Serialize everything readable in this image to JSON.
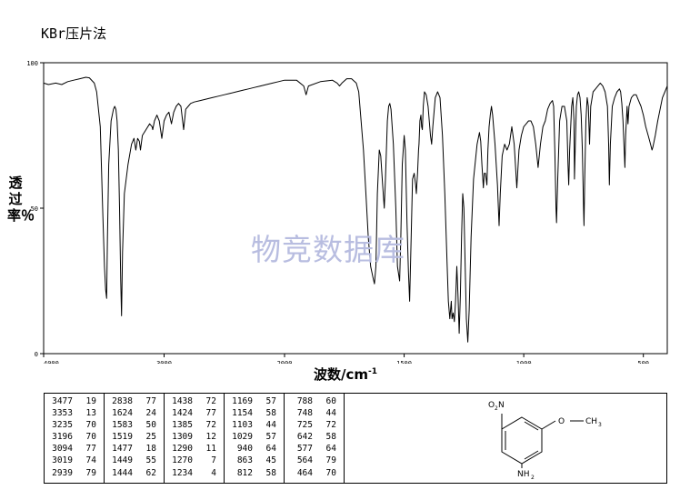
{
  "header": {
    "title": "KBr压片法"
  },
  "axes": {
    "ylabel": "透过率％",
    "xlabel_main": "波数/cm",
    "xlabel_sup": "-1"
  },
  "watermark": "物竞数据库",
  "chart_data": {
    "type": "line",
    "xlabel": "波数/cm-1",
    "ylabel": "透过率％",
    "xlim": [
      4000,
      400
    ],
    "ylim": [
      0,
      100
    ],
    "x_ticks": [
      4000,
      3000,
      2000,
      1500,
      1000,
      500
    ],
    "y_ticks": [
      0,
      50,
      100
    ],
    "x_tick_labels": [
      "4000",
      "3000",
      "2000",
      "1500",
      "1000",
      "500"
    ],
    "y_tick_labels": [
      "0",
      "50",
      "100"
    ],
    "line_color": "#000000",
    "series": [
      {
        "points": [
          [
            4000,
            93
          ],
          [
            3960,
            92.5
          ],
          [
            3900,
            93
          ],
          [
            3850,
            92.5
          ],
          [
            3800,
            93.5
          ],
          [
            3750,
            94
          ],
          [
            3700,
            94.5
          ],
          [
            3650,
            95
          ],
          [
            3620,
            94.8
          ],
          [
            3580,
            93
          ],
          [
            3560,
            90
          ],
          [
            3530,
            78
          ],
          [
            3510,
            50
          ],
          [
            3495,
            30
          ],
          [
            3485,
            22
          ],
          [
            3477,
            19
          ],
          [
            3470,
            40
          ],
          [
            3460,
            65
          ],
          [
            3440,
            80
          ],
          [
            3420,
            84
          ],
          [
            3410,
            85
          ],
          [
            3400,
            84
          ],
          [
            3390,
            80
          ],
          [
            3380,
            70
          ],
          [
            3370,
            50
          ],
          [
            3360,
            25
          ],
          [
            3353,
            13
          ],
          [
            3345,
            35
          ],
          [
            3330,
            55
          ],
          [
            3300,
            65
          ],
          [
            3270,
            72
          ],
          [
            3250,
            74
          ],
          [
            3235,
            70
          ],
          [
            3220,
            74
          ],
          [
            3205,
            73
          ],
          [
            3196,
            70
          ],
          [
            3180,
            75
          ],
          [
            3150,
            77
          ],
          [
            3120,
            79
          ],
          [
            3100,
            78
          ],
          [
            3094,
            77
          ],
          [
            3080,
            80
          ],
          [
            3060,
            82
          ],
          [
            3040,
            80
          ],
          [
            3019,
            74
          ],
          [
            3000,
            80
          ],
          [
            2980,
            82
          ],
          [
            2960,
            83
          ],
          [
            2939,
            79
          ],
          [
            2920,
            83
          ],
          [
            2900,
            85
          ],
          [
            2880,
            86
          ],
          [
            2860,
            85
          ],
          [
            2838,
            77
          ],
          [
            2820,
            84
          ],
          [
            2800,
            85
          ],
          [
            2780,
            86
          ],
          [
            2750,
            86.5
          ],
          [
            2700,
            87
          ],
          [
            2650,
            87.5
          ],
          [
            2600,
            88
          ],
          [
            2550,
            88.5
          ],
          [
            2500,
            89
          ],
          [
            2450,
            89.5
          ],
          [
            2400,
            90
          ],
          [
            2350,
            90.5
          ],
          [
            2300,
            91
          ],
          [
            2250,
            91.5
          ],
          [
            2200,
            92
          ],
          [
            2150,
            92.5
          ],
          [
            2100,
            93
          ],
          [
            2050,
            93.5
          ],
          [
            2000,
            94
          ],
          [
            1950,
            94
          ],
          [
            1920,
            92
          ],
          [
            1910,
            89
          ],
          [
            1900,
            92
          ],
          [
            1850,
            93.5
          ],
          [
            1800,
            94
          ],
          [
            1780,
            93
          ],
          [
            1770,
            92
          ],
          [
            1760,
            93
          ],
          [
            1740,
            94.5
          ],
          [
            1720,
            94.5
          ],
          [
            1700,
            93
          ],
          [
            1690,
            90
          ],
          [
            1680,
            80
          ],
          [
            1670,
            70
          ],
          [
            1660,
            55
          ],
          [
            1650,
            40
          ],
          [
            1640,
            30
          ],
          [
            1630,
            26
          ],
          [
            1624,
            24
          ],
          [
            1618,
            30
          ],
          [
            1612,
            55
          ],
          [
            1604,
            70
          ],
          [
            1598,
            68
          ],
          [
            1590,
            58
          ],
          [
            1583,
            50
          ],
          [
            1578,
            60
          ],
          [
            1570,
            80
          ],
          [
            1565,
            85
          ],
          [
            1560,
            86
          ],
          [
            1555,
            84
          ],
          [
            1545,
            72
          ],
          [
            1535,
            50
          ],
          [
            1528,
            30
          ],
          [
            1519,
            25
          ],
          [
            1514,
            40
          ],
          [
            1508,
            65
          ],
          [
            1500,
            75
          ],
          [
            1495,
            70
          ],
          [
            1488,
            45
          ],
          [
            1482,
            28
          ],
          [
            1477,
            18
          ],
          [
            1472,
            35
          ],
          [
            1465,
            60
          ],
          [
            1458,
            62
          ],
          [
            1452,
            58
          ],
          [
            1449,
            55
          ],
          [
            1447,
            58
          ],
          [
            1444,
            62
          ],
          [
            1440,
            70
          ],
          [
            1438,
            72
          ],
          [
            1434,
            80
          ],
          [
            1430,
            82
          ],
          [
            1427,
            78
          ],
          [
            1424,
            77
          ],
          [
            1420,
            85
          ],
          [
            1415,
            90
          ],
          [
            1408,
            89
          ],
          [
            1400,
            85
          ],
          [
            1395,
            80
          ],
          [
            1390,
            75
          ],
          [
            1385,
            72
          ],
          [
            1380,
            78
          ],
          [
            1370,
            88
          ],
          [
            1360,
            90
          ],
          [
            1350,
            88
          ],
          [
            1340,
            75
          ],
          [
            1330,
            55
          ],
          [
            1320,
            30
          ],
          [
            1315,
            18
          ],
          [
            1309,
            12
          ],
          [
            1303,
            18
          ],
          [
            1300,
            12
          ],
          [
            1295,
            14
          ],
          [
            1290,
            11
          ],
          [
            1285,
            18
          ],
          [
            1280,
            30
          ],
          [
            1275,
            20
          ],
          [
            1270,
            7
          ],
          [
            1265,
            20
          ],
          [
            1260,
            40
          ],
          [
            1255,
            55
          ],
          [
            1250,
            50
          ],
          [
            1245,
            30
          ],
          [
            1240,
            12
          ],
          [
            1234,
            4
          ],
          [
            1228,
            15
          ],
          [
            1220,
            40
          ],
          [
            1210,
            60
          ],
          [
            1200,
            68
          ],
          [
            1195,
            72
          ],
          [
            1190,
            74
          ],
          [
            1185,
            76
          ],
          [
            1180,
            73
          ],
          [
            1175,
            65
          ],
          [
            1169,
            57
          ],
          [
            1165,
            62
          ],
          [
            1160,
            62
          ],
          [
            1154,
            58
          ],
          [
            1150,
            70
          ],
          [
            1145,
            78
          ],
          [
            1140,
            82
          ],
          [
            1135,
            85
          ],
          [
            1130,
            82
          ],
          [
            1120,
            72
          ],
          [
            1110,
            58
          ],
          [
            1103,
            44
          ],
          [
            1098,
            55
          ],
          [
            1090,
            68
          ],
          [
            1080,
            72
          ],
          [
            1070,
            70
          ],
          [
            1060,
            72
          ],
          [
            1050,
            78
          ],
          [
            1040,
            72
          ],
          [
            1029,
            57
          ],
          [
            1020,
            70
          ],
          [
            1010,
            75
          ],
          [
            1000,
            78
          ],
          [
            990,
            79
          ],
          [
            980,
            80
          ],
          [
            970,
            80
          ],
          [
            960,
            78
          ],
          [
            950,
            72
          ],
          [
            940,
            64
          ],
          [
            930,
            72
          ],
          [
            920,
            78
          ],
          [
            910,
            80
          ],
          [
            900,
            84
          ],
          [
            890,
            86
          ],
          [
            880,
            87
          ],
          [
            875,
            85
          ],
          [
            870,
            70
          ],
          [
            865,
            50
          ],
          [
            863,
            45
          ],
          [
            858,
            60
          ],
          [
            850,
            80
          ],
          [
            840,
            85
          ],
          [
            830,
            85
          ],
          [
            820,
            80
          ],
          [
            815,
            65
          ],
          [
            812,
            58
          ],
          [
            808,
            70
          ],
          [
            800,
            85
          ],
          [
            795,
            88
          ],
          [
            790,
            80
          ],
          [
            788,
            60
          ],
          [
            785,
            70
          ],
          [
            780,
            85
          ],
          [
            775,
            89
          ],
          [
            770,
            90
          ],
          [
            765,
            88
          ],
          [
            760,
            82
          ],
          [
            755,
            70
          ],
          [
            750,
            50
          ],
          [
            748,
            44
          ],
          [
            745,
            60
          ],
          [
            740,
            80
          ],
          [
            735,
            88
          ],
          [
            730,
            85
          ],
          [
            725,
            72
          ],
          [
            720,
            85
          ],
          [
            710,
            90
          ],
          [
            700,
            91
          ],
          [
            690,
            92
          ],
          [
            680,
            93
          ],
          [
            670,
            92
          ],
          [
            660,
            90
          ],
          [
            650,
            85
          ],
          [
            645,
            72
          ],
          [
            642,
            58
          ],
          [
            638,
            72
          ],
          [
            630,
            85
          ],
          [
            620,
            88
          ],
          [
            610,
            90
          ],
          [
            600,
            91
          ],
          [
            595,
            90
          ],
          [
            590,
            86
          ],
          [
            585,
            80
          ],
          [
            580,
            70
          ],
          [
            577,
            64
          ],
          [
            574,
            75
          ],
          [
            568,
            85
          ],
          [
            564,
            79
          ],
          [
            560,
            85
          ],
          [
            550,
            88
          ],
          [
            540,
            89
          ],
          [
            530,
            89
          ],
          [
            520,
            87
          ],
          [
            510,
            85
          ],
          [
            500,
            82
          ],
          [
            490,
            78
          ],
          [
            480,
            75
          ],
          [
            470,
            72
          ],
          [
            464,
            70
          ],
          [
            460,
            71
          ],
          [
            450,
            75
          ],
          [
            440,
            80
          ],
          [
            430,
            84
          ],
          [
            420,
            88
          ],
          [
            410,
            90
          ],
          [
            400,
            92
          ]
        ]
      }
    ]
  },
  "peak_table": {
    "columns": [
      [
        [
          "3477",
          "19"
        ],
        [
          "3353",
          "13"
        ],
        [
          "3235",
          "70"
        ],
        [
          "3196",
          "70"
        ],
        [
          "3094",
          "77"
        ],
        [
          "3019",
          "74"
        ],
        [
          "2939",
          "79"
        ]
      ],
      [
        [
          "2838",
          "77"
        ],
        [
          "1624",
          "24"
        ],
        [
          "1583",
          "50"
        ],
        [
          "1519",
          "25"
        ],
        [
          "1477",
          "18"
        ],
        [
          "1449",
          "55"
        ],
        [
          "1444",
          "62"
        ]
      ],
      [
        [
          "1438",
          "72"
        ],
        [
          "1424",
          "77"
        ],
        [
          "1385",
          "72"
        ],
        [
          "1309",
          "12"
        ],
        [
          "1290",
          "11"
        ],
        [
          "1270",
          "7"
        ],
        [
          "1234",
          "4"
        ]
      ],
      [
        [
          "1169",
          "57"
        ],
        [
          "1154",
          "58"
        ],
        [
          "1103",
          "44"
        ],
        [
          "1029",
          "57"
        ],
        [
          "940",
          "64"
        ],
        [
          "863",
          "45"
        ],
        [
          "812",
          "58"
        ]
      ],
      [
        [
          "788",
          "60"
        ],
        [
          "748",
          "44"
        ],
        [
          "725",
          "72"
        ],
        [
          "642",
          "58"
        ],
        [
          "577",
          "64"
        ],
        [
          "564",
          "79"
        ],
        [
          "464",
          "70"
        ]
      ]
    ]
  },
  "structure": {
    "no2_o": "O",
    "no2_sub": "2",
    "no2_n": "N",
    "ome": "O",
    "ch3_main": "CH",
    "ch3_sub": "3",
    "nh2_main": "NH",
    "nh2_sub": "2"
  }
}
